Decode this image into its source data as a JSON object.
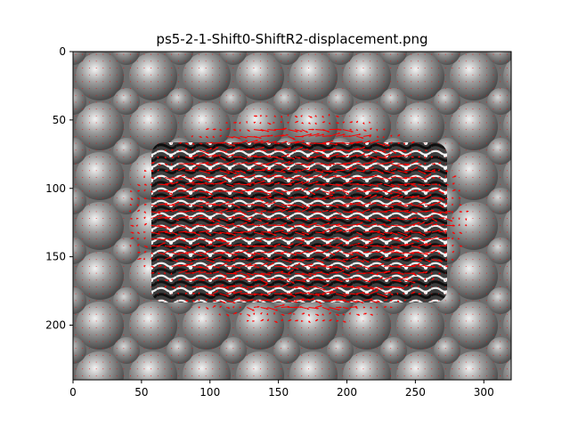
{
  "chart_data": {
    "type": "quiver",
    "title": "ps5-2-1-Shift0-ShiftR2-displacement.png",
    "xlabel": "",
    "ylabel": "",
    "xlim": [
      0,
      320
    ],
    "ylim": [
      240,
      0
    ],
    "y_inverted": true,
    "grid": false,
    "legend": "none",
    "x_ticks": [
      0,
      50,
      100,
      150,
      200,
      250,
      300
    ],
    "y_ticks": [
      0,
      50,
      100,
      150,
      200
    ],
    "x_tick_labels": [
      "0",
      "50",
      "100",
      "150",
      "200",
      "250",
      "300"
    ],
    "y_tick_labels": [
      "0",
      "50",
      "100",
      "150",
      "200"
    ],
    "background": "grayscale textured image (sphere-like bumps)",
    "vector_field": {
      "sample_step": 5,
      "arrow_color": "#ff0000",
      "dominant_direction": "right",
      "active_region_x": [
        55,
        270
      ],
      "active_region_y": [
        55,
        190
      ],
      "active_magnitude_approx": 2,
      "background_magnitude_approx": 0
    },
    "colors": {
      "axes": "#000000",
      "arrows": "#ff0000"
    }
  }
}
